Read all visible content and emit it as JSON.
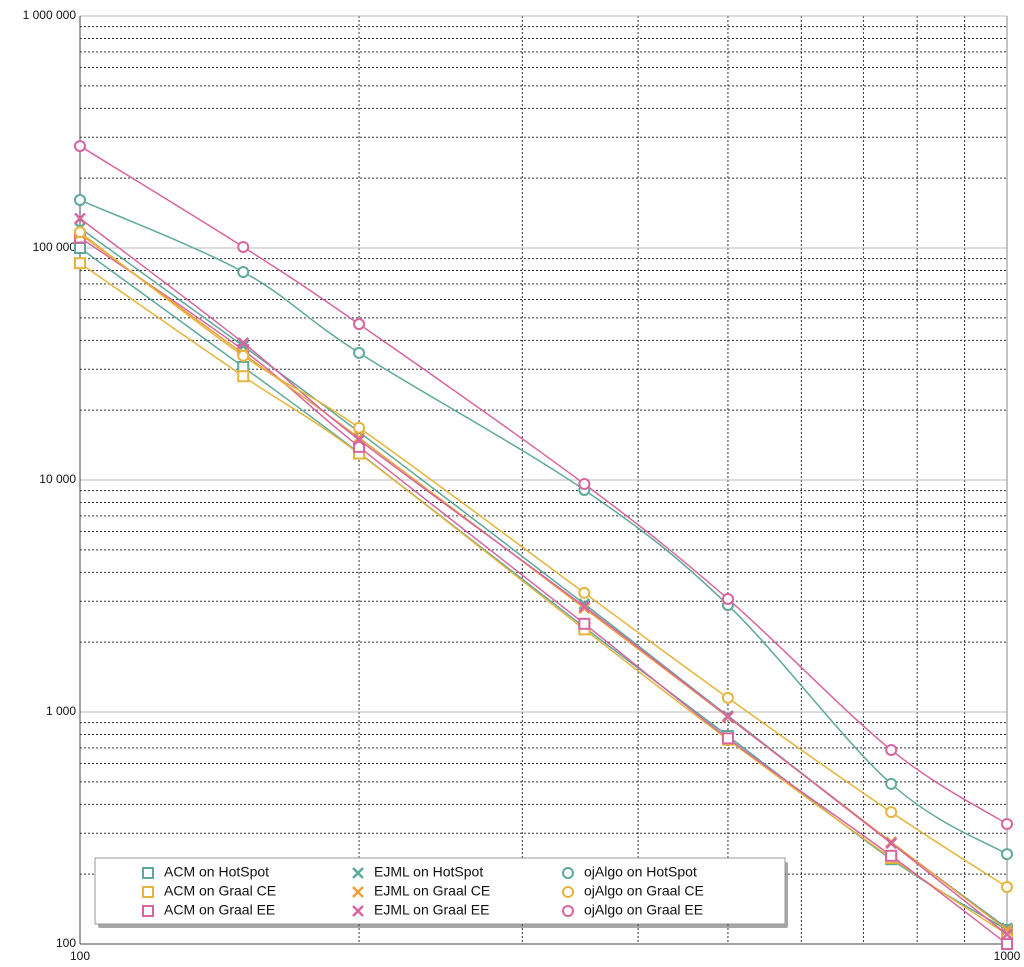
{
  "chart_data": {
    "type": "line",
    "x": [
      100,
      150,
      200,
      350,
      500,
      750,
      1000
    ],
    "xlim": [
      100,
      1000
    ],
    "ylim": [
      100,
      1000000
    ],
    "xscale": "log",
    "yscale": "log",
    "grid": true,
    "legend": "lower left",
    "xticks": [
      100,
      1000
    ],
    "yticks": [
      100,
      {
        "value": 1000,
        "label": "1 000"
      },
      {
        "value": 10000,
        "label": "10 000"
      },
      {
        "value": 100000,
        "label": "100 000"
      },
      {
        "value": 1000000,
        "label": "1 000 000"
      }
    ],
    "series": [
      {
        "name": "ACM on HotSpot",
        "color": "#5ea99b",
        "marker": "square",
        "values": [
          100000,
          30700,
          13100,
          2320,
          788,
          232,
          115
        ]
      },
      {
        "name": "ACM on Graal CE",
        "color": "#e6b43c",
        "marker": "square",
        "values": [
          86000,
          28000,
          13000,
          2270,
          760,
          235,
          110
        ]
      },
      {
        "name": "ACM on Graal EE",
        "color": "#d865a0",
        "marker": "square",
        "values": [
          111000,
          36300,
          13900,
          2400,
          770,
          240,
          100
        ]
      },
      {
        "name": "EJML on HotSpot",
        "color": "#5ea99b",
        "marker": "x",
        "values": [
          122000,
          37800,
          16100,
          2920,
          962,
          275,
          117
        ]
      },
      {
        "name": "EJML on Graal CE",
        "color": "#eba03c",
        "marker": "x",
        "values": [
          115000,
          35000,
          15200,
          2800,
          950,
          275,
          115
        ]
      },
      {
        "name": "EJML on Graal EE",
        "color": "#d865a0",
        "marker": "x",
        "values": [
          134000,
          39000,
          14900,
          2850,
          955,
          272,
          110
        ]
      },
      {
        "name": "ojAlgo on HotSpot",
        "color": "#5ea99b",
        "marker": "circle",
        "values": [
          161000,
          78800,
          35300,
          9060,
          2890,
          490,
          244
        ]
      },
      {
        "name": "ojAlgo on Graal CE",
        "color": "#e6b43c",
        "marker": "circle",
        "values": [
          117000,
          34300,
          16800,
          3260,
          1150,
          370,
          176
        ]
      },
      {
        "name": "ojAlgo on Graal EE",
        "color": "#d865a0",
        "marker": "circle",
        "values": [
          275000,
          101000,
          47000,
          9610,
          3070,
          686,
          329
        ]
      }
    ]
  }
}
